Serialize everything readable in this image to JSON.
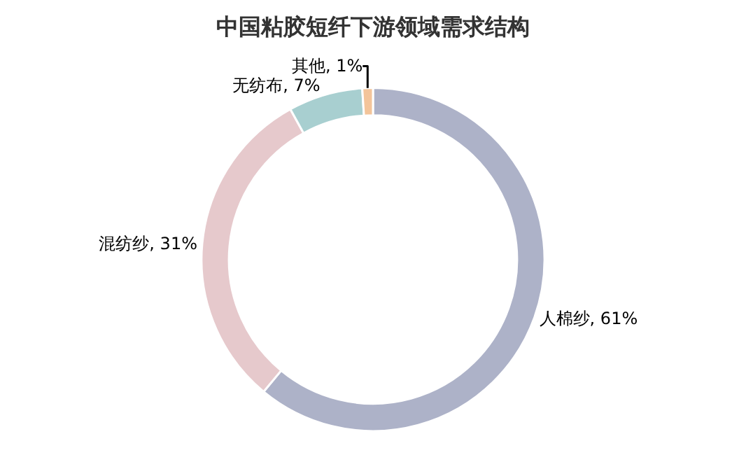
{
  "chart_data": {
    "type": "donut",
    "title": "中国粘胶短纤下游领域需求结构",
    "categories": [
      "人棉纱",
      "混纺纱",
      "无纺布",
      "其他"
    ],
    "values": [
      61,
      31,
      7,
      1
    ],
    "value_labels": [
      "61%",
      "31%",
      "7%",
      "1%"
    ],
    "colors": [
      "#adb2c8",
      "#e6c9cc",
      "#a8cfd0",
      "#f3c49a"
    ],
    "legend": false
  }
}
